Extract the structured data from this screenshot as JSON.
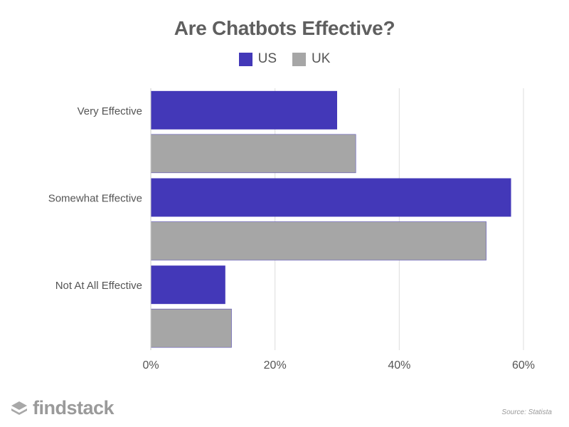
{
  "chart_data": {
    "type": "bar",
    "orientation": "horizontal",
    "title": "Are Chatbots Effective?",
    "categories": [
      "Very Effective",
      "Somewhat Effective",
      "Not At All Effective"
    ],
    "series": [
      {
        "name": "US",
        "values": [
          30,
          58,
          12
        ],
        "color": "#4338b8"
      },
      {
        "name": "UK",
        "values": [
          33,
          54,
          13
        ],
        "color": "#a6a6a6"
      }
    ],
    "xlim": [
      0,
      60
    ],
    "xticks": [
      0,
      20,
      40,
      60
    ],
    "xtick_labels": [
      "0%",
      "20%",
      "40%",
      "60%"
    ],
    "grid": true,
    "legend_position": "top-center"
  },
  "branding": {
    "logo_text": "findstack",
    "source": "Source: Statista"
  },
  "colors": {
    "us": "#4338b8",
    "uk": "#a6a6a6",
    "grid": "#dddddd",
    "text": "#555555"
  }
}
